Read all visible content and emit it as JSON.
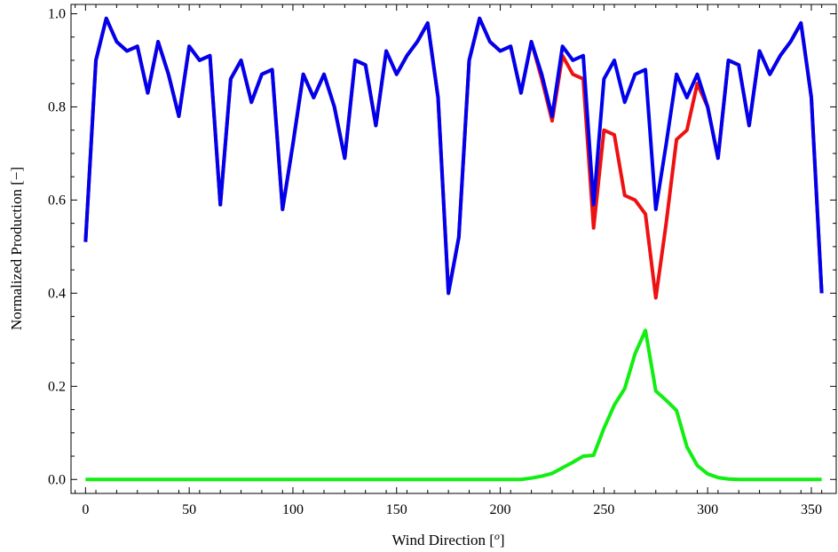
{
  "chart_data": {
    "type": "line",
    "title": "",
    "xlabel": "Wind Direction [",
    "xlabel_sup": "o",
    "xlabel_end": "]",
    "ylabel": "Normalized Production [−]",
    "xlim": [
      -7,
      362
    ],
    "ylim": [
      -0.03,
      1.02
    ],
    "xticks": [
      0,
      50,
      100,
      150,
      200,
      250,
      300,
      350
    ],
    "yticks": [
      0.0,
      0.2,
      0.4,
      0.6,
      0.8,
      1.0
    ],
    "xtick_labels": [
      "0",
      "50",
      "100",
      "150",
      "200",
      "250",
      "300",
      "350"
    ],
    "ytick_labels": [
      "0.0",
      "0.2",
      "0.4",
      "0.6",
      "0.8",
      "1.0"
    ],
    "grid": false,
    "x": [
      0,
      5,
      10,
      15,
      20,
      25,
      30,
      35,
      40,
      45,
      50,
      55,
      60,
      65,
      70,
      75,
      80,
      85,
      90,
      95,
      100,
      105,
      110,
      115,
      120,
      125,
      130,
      135,
      140,
      145,
      150,
      155,
      160,
      165,
      170,
      175,
      180,
      185,
      190,
      195,
      200,
      205,
      210,
      215,
      220,
      225,
      230,
      235,
      240,
      245,
      250,
      255,
      260,
      265,
      270,
      275,
      280,
      285,
      290,
      295,
      300,
      305,
      310,
      315,
      320,
      325,
      330,
      335,
      340,
      345,
      350,
      355
    ],
    "series": [
      {
        "color": "#ee1111",
        "values": [
          0.51,
          0.9,
          0.99,
          0.94,
          0.92,
          0.93,
          0.83,
          0.94,
          0.87,
          0.78,
          0.93,
          0.9,
          0.91,
          0.59,
          0.86,
          0.9,
          0.81,
          0.87,
          0.88,
          0.58,
          0.72,
          0.87,
          0.82,
          0.87,
          0.8,
          0.69,
          0.9,
          0.89,
          0.76,
          0.92,
          0.87,
          0.91,
          0.94,
          0.98,
          0.82,
          0.4,
          0.52,
          0.9,
          0.99,
          0.94,
          0.92,
          0.93,
          0.83,
          0.94,
          0.86,
          0.77,
          0.91,
          0.87,
          0.86,
          0.54,
          0.75,
          0.74,
          0.61,
          0.6,
          0.57,
          0.39,
          0.55,
          0.73,
          0.75,
          0.85,
          0.8,
          0.69,
          0.9,
          0.89,
          0.76,
          0.92,
          0.87,
          0.91,
          0.94,
          0.98,
          0.82,
          0.4
        ]
      },
      {
        "color": "#0000ee",
        "values": [
          0.51,
          0.9,
          0.99,
          0.94,
          0.92,
          0.93,
          0.83,
          0.94,
          0.87,
          0.78,
          0.93,
          0.9,
          0.91,
          0.59,
          0.86,
          0.9,
          0.81,
          0.87,
          0.88,
          0.58,
          0.72,
          0.87,
          0.82,
          0.87,
          0.8,
          0.69,
          0.9,
          0.89,
          0.76,
          0.92,
          0.87,
          0.91,
          0.94,
          0.98,
          0.82,
          0.4,
          0.52,
          0.9,
          0.99,
          0.94,
          0.92,
          0.93,
          0.83,
          0.94,
          0.87,
          0.78,
          0.93,
          0.9,
          0.91,
          0.59,
          0.86,
          0.9,
          0.81,
          0.87,
          0.88,
          0.58,
          0.72,
          0.87,
          0.82,
          0.87,
          0.8,
          0.69,
          0.9,
          0.89,
          0.76,
          0.92,
          0.87,
          0.91,
          0.94,
          0.98,
          0.82,
          0.4
        ]
      },
      {
        "color": "#11ee11",
        "values": [
          0,
          0,
          0,
          0,
          0,
          0,
          0,
          0,
          0,
          0,
          0,
          0,
          0,
          0,
          0,
          0,
          0,
          0,
          0,
          0,
          0,
          0,
          0,
          0,
          0,
          0,
          0,
          0,
          0,
          0,
          0,
          0,
          0,
          0,
          0,
          0,
          0,
          0,
          0,
          0,
          0,
          0,
          0,
          0.003,
          0.007,
          0.013,
          0.025,
          0.037,
          0.05,
          0.052,
          0.11,
          0.16,
          0.195,
          0.27,
          0.32,
          0.19,
          0.17,
          0.148,
          0.07,
          0.03,
          0.012,
          0.004,
          0.001,
          0,
          0,
          0,
          0,
          0,
          0,
          0,
          0,
          0
        ]
      }
    ]
  }
}
